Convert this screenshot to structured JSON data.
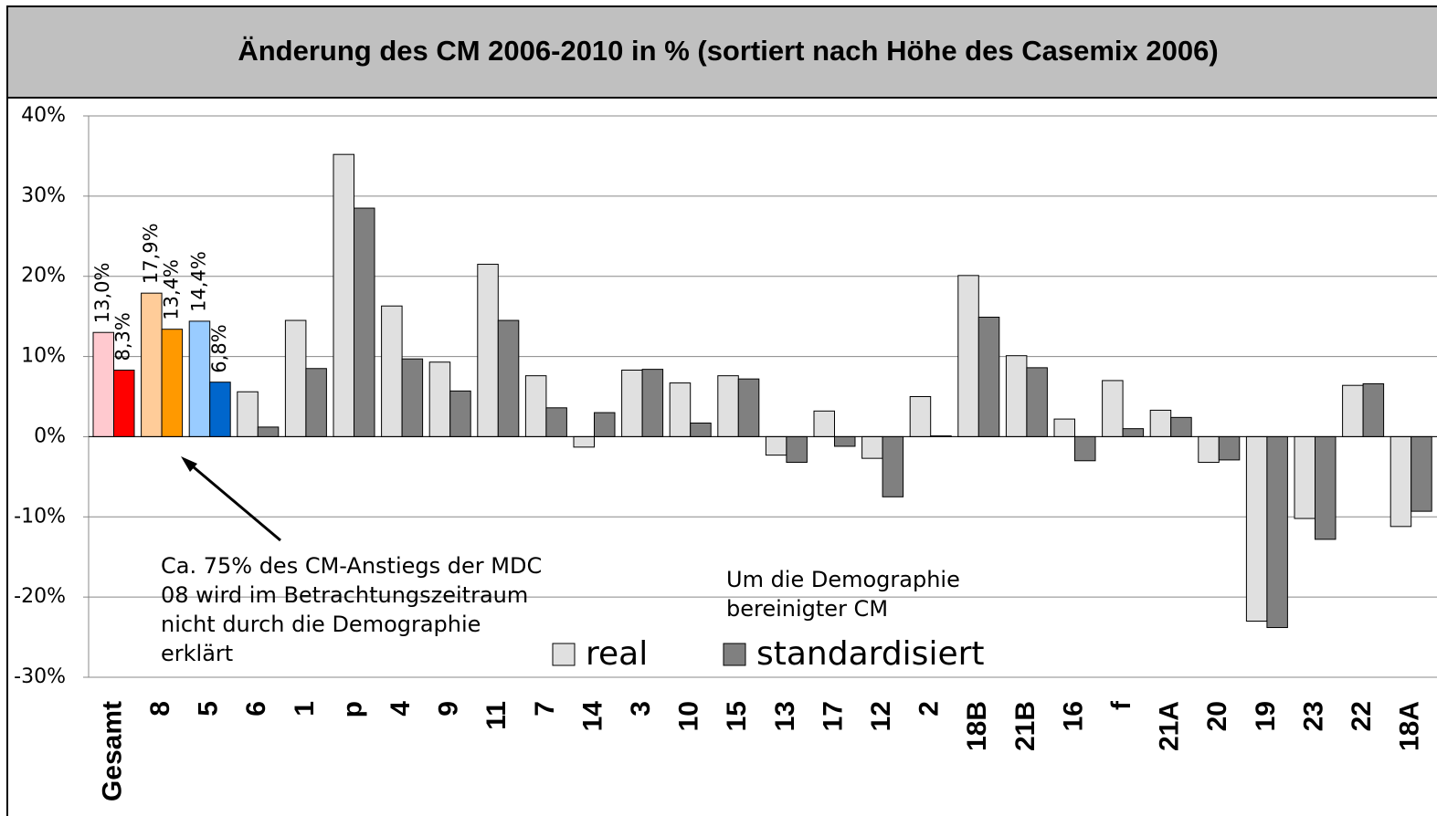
{
  "chart_data": {
    "type": "bar",
    "title": "Änderung des CM 2006-2010 in % (sortiert nach Höhe des Casemix 2006)",
    "categories": [
      "Gesamt",
      "8",
      "5",
      "6",
      "1",
      "p",
      "4",
      "9",
      "11",
      "7",
      "14",
      "3",
      "10",
      "15",
      "13",
      "17",
      "12",
      "2",
      "18B",
      "21B",
      "16",
      "f",
      "21A",
      "20",
      "19",
      "23",
      "22",
      "18A"
    ],
    "series": [
      {
        "name": "real",
        "color": "#e0e0e0",
        "colors": [
          "#ffc9cf",
          "#ffcc99",
          "#99ccff",
          "#e0e0e0",
          "#e0e0e0",
          "#e0e0e0",
          "#e0e0e0",
          "#e0e0e0",
          "#e0e0e0",
          "#e0e0e0",
          "#e0e0e0",
          "#e0e0e0",
          "#e0e0e0",
          "#e0e0e0",
          "#e0e0e0",
          "#e0e0e0",
          "#e0e0e0",
          "#e0e0e0",
          "#e0e0e0",
          "#e0e0e0",
          "#e0e0e0",
          "#e0e0e0",
          "#e0e0e0",
          "#e0e0e0",
          "#e0e0e0",
          "#e0e0e0",
          "#e0e0e0",
          "#e0e0e0"
        ],
        "values": [
          13.0,
          17.9,
          14.4,
          5.6,
          14.5,
          35.2,
          16.3,
          9.3,
          21.5,
          7.6,
          -1.3,
          8.3,
          6.7,
          7.6,
          -2.3,
          3.2,
          -2.7,
          5.0,
          20.1,
          10.1,
          2.2,
          7.0,
          3.3,
          -3.2,
          -23.0,
          -10.2,
          6.4,
          -11.2
        ],
        "value_labels": [
          "13,0%",
          "17,9%",
          "14,4%",
          null,
          null,
          null,
          null,
          null,
          null,
          null,
          null,
          null,
          null,
          null,
          null,
          null,
          null,
          null,
          null,
          null,
          null,
          null,
          null,
          null,
          null,
          null,
          null,
          null
        ]
      },
      {
        "name": "standardisiert",
        "color": "#808080",
        "colors": [
          "#ff0000",
          "#ff9900",
          "#0066cc",
          "#808080",
          "#808080",
          "#808080",
          "#808080",
          "#808080",
          "#808080",
          "#808080",
          "#808080",
          "#808080",
          "#808080",
          "#808080",
          "#808080",
          "#808080",
          "#808080",
          "#808080",
          "#808080",
          "#808080",
          "#808080",
          "#808080",
          "#808080",
          "#808080",
          "#808080",
          "#808080",
          "#808080",
          "#808080"
        ],
        "values": [
          8.3,
          13.4,
          6.8,
          1.2,
          8.5,
          28.5,
          9.7,
          5.7,
          14.5,
          3.6,
          3.0,
          8.4,
          1.7,
          7.2,
          -3.2,
          -1.2,
          -7.5,
          0.1,
          14.9,
          8.6,
          -3.0,
          1.0,
          2.4,
          -2.9,
          -23.8,
          -12.8,
          6.6,
          -9.3
        ],
        "value_labels": [
          "8,3%",
          "13,4%",
          "6,8%",
          null,
          null,
          null,
          null,
          null,
          null,
          null,
          null,
          null,
          null,
          null,
          null,
          null,
          null,
          null,
          null,
          null,
          null,
          null,
          null,
          null,
          null,
          null,
          null,
          null
        ]
      }
    ],
    "ylim": [
      -30,
      40
    ],
    "yticks": [
      {
        "value": -30,
        "label": "-30%"
      },
      {
        "value": -20,
        "label": "-20%"
      },
      {
        "value": -10,
        "label": "-10%"
      },
      {
        "value": 0,
        "label": "0%"
      },
      {
        "value": 10,
        "label": "10%"
      },
      {
        "value": 20,
        "label": "20%"
      },
      {
        "value": 30,
        "label": "30%"
      },
      {
        "value": 40,
        "label": "40%"
      }
    ],
    "grid": true,
    "legend": "bottom",
    "annotations": [
      "Ca. 75% des CM-Anstiegs der MDC",
      "08 wird im Betrachtungszeitraum",
      "nicht durch die Demographie",
      "erklärt",
      "Um die Demographie",
      "bereinigter CM"
    ]
  }
}
